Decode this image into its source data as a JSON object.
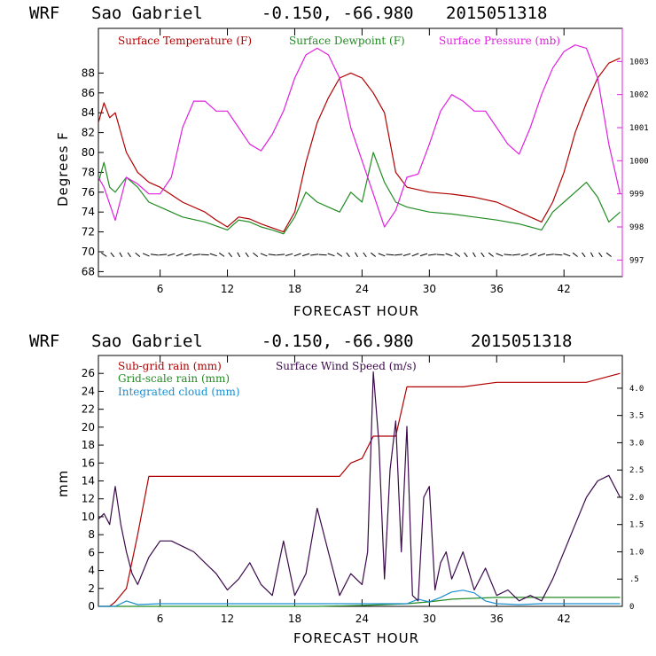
{
  "colors": {
    "red": "#b00000",
    "green": "#228b22",
    "magenta": "#e020e0",
    "purple": "#3a0a4a",
    "cyan": "#1a8fd0",
    "black": "#000000"
  },
  "chart_data": [
    {
      "type": "line",
      "header": {
        "model": "WRF",
        "station": "Sao Gabriel",
        "coords": "-0.150, -66.980",
        "run": "2015051318"
      },
      "xlabel": "FORECAST HOUR",
      "ylabel": "Degrees F",
      "xlim": [
        0.5,
        47.2
      ],
      "ylim": [
        67.5,
        92.5
      ],
      "x_ticks": [
        6,
        12,
        18,
        24,
        30,
        36,
        42
      ],
      "y_ticks": [
        68,
        70,
        72,
        74,
        76,
        78,
        80,
        82,
        84,
        86,
        88
      ],
      "y2_label": "Surface Pressure (mb)",
      "y2lim": [
        996.5,
        1004.0
      ],
      "y2_ticks": [
        997,
        998,
        999,
        1000,
        1001,
        1002,
        1003
      ],
      "legend": [
        "Surface Temperature (F)",
        "Surface Dewpoint (F)",
        "Surface Pressure (mb)"
      ],
      "series": [
        {
          "name": "Surface Temperature (F)",
          "color_key": "red",
          "axis": "left",
          "x": [
            0.5,
            1,
            1.5,
            2,
            2.5,
            3,
            3.5,
            4,
            5,
            6,
            8,
            10,
            11,
            12,
            13,
            14,
            15,
            16,
            17,
            18,
            19,
            20,
            21,
            22,
            23,
            24,
            25,
            26,
            27,
            28,
            30,
            32,
            34,
            36,
            38,
            40,
            41,
            42,
            43,
            44,
            45,
            46,
            47
          ],
          "values": [
            83,
            85,
            83.5,
            84,
            82,
            80,
            79,
            78,
            77,
            76.5,
            75,
            74,
            73.2,
            72.5,
            73.5,
            73.3,
            72.8,
            72.4,
            72,
            74,
            79,
            83,
            85.5,
            87.5,
            88,
            87.5,
            86,
            84,
            78,
            76.5,
            76,
            75.8,
            75.5,
            75,
            74,
            73,
            75,
            78,
            82,
            85,
            87.5,
            89,
            89.5
          ]
        },
        {
          "name": "Surface Dewpoint (F)",
          "color_key": "green",
          "axis": "left",
          "x": [
            0.5,
            1,
            1.5,
            2,
            3,
            4,
            5,
            6,
            8,
            10,
            12,
            13,
            14,
            15,
            16,
            17,
            18,
            19,
            20,
            21,
            22,
            23,
            24,
            25,
            26,
            27,
            28,
            30,
            32,
            34,
            36,
            38,
            40,
            41,
            42,
            43,
            44,
            45,
            46,
            47
          ],
          "values": [
            77,
            79,
            76.5,
            76,
            77.5,
            76.5,
            75,
            74.5,
            73.5,
            73,
            72.2,
            73.2,
            73,
            72.5,
            72.2,
            71.8,
            73.5,
            76,
            75,
            74.5,
            74,
            76,
            75,
            80,
            77,
            75,
            74.5,
            74,
            73.8,
            73.5,
            73.2,
            72.8,
            72.2,
            74,
            75,
            76,
            77,
            75.5,
            73,
            74
          ]
        },
        {
          "name": "Surface Pressure (mb)",
          "color_key": "magenta",
          "axis": "right",
          "x": [
            0.5,
            1,
            2,
            3,
            4,
            5,
            6,
            7,
            8,
            9,
            10,
            11,
            12,
            13,
            14,
            15,
            16,
            17,
            18,
            19,
            20,
            21,
            22,
            23,
            24,
            25,
            26,
            27,
            28,
            29,
            30,
            31,
            32,
            33,
            34,
            35,
            36,
            37,
            38,
            39,
            40,
            41,
            42,
            43,
            44,
            45,
            46,
            47
          ],
          "values": [
            999.5,
            999.2,
            998.2,
            999.5,
            999.3,
            999.0,
            999.0,
            999.5,
            1001.0,
            1001.8,
            1001.8,
            1001.5,
            1001.5,
            1001.0,
            1000.5,
            1000.3,
            1000.8,
            1001.5,
            1002.5,
            1003.2,
            1003.4,
            1003.2,
            1002.5,
            1001.0,
            1000.0,
            999.0,
            998.0,
            998.5,
            999.5,
            999.6,
            1000.5,
            1001.5,
            1002.0,
            1001.8,
            1001.5,
            1001.5,
            1001.0,
            1000.5,
            1000.2,
            1001.0,
            1002.0,
            1002.8,
            1003.3,
            1003.5,
            1003.4,
            1002.5,
            1000.5,
            999.0
          ]
        }
      ],
      "wind_barbs": "row of wind barbs along y≈70"
    },
    {
      "type": "line",
      "header": {
        "model": "WRF",
        "station": "Sao Gabriel",
        "coords": "-0.150, -66.980",
        "run": "2015051318"
      },
      "xlabel": "FORECAST HOUR",
      "ylabel": "mm",
      "xlim": [
        0.5,
        47.2
      ],
      "ylim": [
        0,
        28
      ],
      "x_ticks": [
        6,
        12,
        18,
        24,
        30,
        36,
        42
      ],
      "y_ticks": [
        0,
        2,
        4,
        6,
        8,
        10,
        12,
        14,
        16,
        18,
        20,
        22,
        24,
        26
      ],
      "y2_label": "Surface Wind Speed (m/s)",
      "y2lim": [
        0,
        4.6
      ],
      "y2_ticks": [
        0,
        0.5,
        1.0,
        1.5,
        2.0,
        2.5,
        3.0,
        3.5,
        4.0
      ],
      "y2_tick_labels": [
        "0",
        ".5",
        "1.0",
        "1.5",
        "2.0",
        "2.5",
        "3.0",
        "3.5",
        "4.0"
      ],
      "legend": [
        "Sub-grid rain (mm)",
        "Grid-scale rain (mm)",
        "Integrated cloud (mm)",
        "Surface Wind Speed (m/s)"
      ],
      "series": [
        {
          "name": "Sub-grid rain (mm)",
          "color_key": "red",
          "axis": "left",
          "x": [
            0.5,
            1.5,
            2,
            3,
            4,
            5,
            6,
            10,
            14,
            18,
            22,
            23,
            24,
            25,
            26,
            27,
            28,
            30,
            33,
            36,
            40,
            44,
            47
          ],
          "values": [
            0,
            0,
            0.5,
            2,
            8,
            14.5,
            14.5,
            14.5,
            14.5,
            14.5,
            14.5,
            16,
            16.5,
            19,
            19,
            19,
            24.5,
            24.5,
            24.5,
            25,
            25,
            25,
            26
          ]
        },
        {
          "name": "Grid-scale rain (mm)",
          "color_key": "green",
          "axis": "left",
          "x": [
            0.5,
            10,
            20,
            24,
            26,
            28,
            30,
            32,
            36,
            40,
            44,
            47
          ],
          "values": [
            0,
            0,
            0,
            0.1,
            0.2,
            0.3,
            0.5,
            0.8,
            1.0,
            1.0,
            1.0,
            1.0
          ]
        },
        {
          "name": "Integrated cloud (mm)",
          "color_key": "cyan",
          "axis": "left",
          "x": [
            0.5,
            2,
            3,
            4,
            6,
            10,
            14,
            20,
            24,
            26,
            28,
            29,
            30,
            31,
            32,
            33,
            34,
            35,
            36,
            38,
            40,
            44,
            47
          ],
          "values": [
            0,
            0,
            0.6,
            0.2,
            0.3,
            0.3,
            0.3,
            0.3,
            0.3,
            0.3,
            0.3,
            0.8,
            0.5,
            1.0,
            1.6,
            1.8,
            1.5,
            0.6,
            0.3,
            0.2,
            0.3,
            0.3,
            0.3
          ]
        },
        {
          "name": "Surface Wind Speed (m/s)",
          "color_key": "purple",
          "axis": "right",
          "x": [
            0.5,
            1,
            1.5,
            2,
            2.5,
            3,
            3.5,
            4,
            5,
            6,
            7,
            8,
            9,
            10,
            11,
            12,
            13,
            14,
            15,
            16,
            17,
            18,
            19,
            20,
            21,
            22,
            23,
            24,
            24.5,
            25,
            25.5,
            26,
            26.5,
            27,
            27.5,
            28,
            28.5,
            29,
            29.5,
            30,
            30.5,
            31,
            31.5,
            32,
            33,
            34,
            35,
            36,
            37,
            38,
            39,
            40,
            41,
            42,
            43,
            44,
            45,
            46,
            47
          ],
          "values": [
            1.6,
            1.7,
            1.5,
            2.2,
            1.5,
            1.0,
            0.6,
            0.4,
            0.9,
            1.2,
            1.2,
            1.1,
            1.0,
            0.8,
            0.6,
            0.3,
            0.5,
            0.8,
            0.4,
            0.2,
            1.2,
            0.2,
            0.6,
            1.8,
            1.0,
            0.2,
            0.6,
            0.4,
            1.0,
            4.3,
            3.0,
            0.5,
            2.5,
            3.4,
            1.0,
            3.3,
            0.2,
            0.1,
            2.0,
            2.2,
            0.3,
            0.8,
            1.0,
            0.5,
            1.0,
            0.3,
            0.7,
            0.2,
            0.3,
            0.1,
            0.2,
            0.1,
            0.5,
            1.0,
            1.5,
            2.0,
            2.3,
            2.4,
            2.0
          ]
        }
      ]
    }
  ]
}
